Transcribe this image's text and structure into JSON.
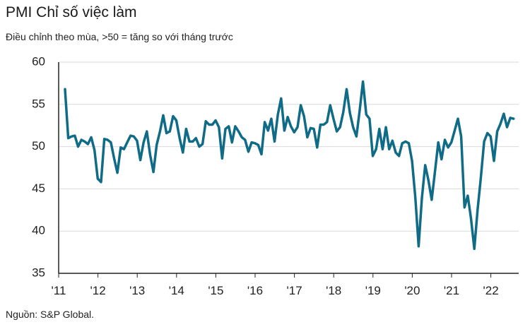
{
  "title": "PMI Chỉ số việc làm",
  "subtitle": "Điều chỉnh theo mùa, >50 = tăng so với tháng trước",
  "source": "Nguồn: S&P Global.",
  "chart_data": {
    "type": "line",
    "ylim": [
      35,
      60
    ],
    "y_ticks": [
      60,
      55,
      50,
      45,
      40,
      35
    ],
    "x_ticks": [
      "'11",
      "'12",
      "'13",
      "'14",
      "'15",
      "'16",
      "'17",
      "'18",
      "'19",
      "'20",
      "'21",
      "'22"
    ],
    "start": "2011-01",
    "line_color": "#0f6b86",
    "grid": "horizontal",
    "series": [
      {
        "values": [
          56.8,
          51.0,
          51.2,
          51.3,
          50.0,
          50.8,
          50.6,
          50.3,
          51.1,
          49.6,
          46.2,
          45.8,
          50.9,
          50.8,
          50.5,
          48.6,
          46.9,
          49.9,
          49.7,
          50.5,
          51.3,
          51.2,
          50.7,
          48.4,
          50.5,
          51.8,
          49.0,
          47.0,
          50.2,
          51.8,
          53.7,
          51.6,
          51.8,
          53.6,
          53.1,
          51.0,
          49.3,
          52.1,
          50.6,
          50.6,
          51.0,
          50.0,
          50.3,
          53.0,
          52.6,
          52.6,
          53.1,
          52.3,
          48.6,
          52.1,
          52.4,
          50.5,
          52.4,
          51.8,
          51.1,
          50.8,
          49.4,
          50.5,
          50.4,
          50.2,
          49.1,
          52.9,
          51.9,
          53.3,
          50.6,
          53.8,
          55.7,
          51.9,
          53.5,
          52.4,
          51.7,
          52.3,
          54.9,
          53.6,
          51.1,
          52.2,
          52.1,
          49.9,
          52.6,
          52.6,
          52.9,
          54.9,
          53.3,
          51.8,
          52.3,
          54.1,
          56.8,
          54.0,
          52.3,
          51.2,
          54.3,
          57.7,
          53.8,
          53.3,
          48.9,
          49.7,
          52.1,
          49.7,
          52.3,
          49.7,
          50.7,
          49.3,
          48.9,
          50.4,
          50.6,
          50.4,
          48.3,
          43.9,
          38.2,
          43.9,
          47.8,
          46.0,
          43.7,
          47.1,
          50.5,
          48.5,
          50.8,
          49.9,
          50.5,
          51.9,
          53.3,
          51.2,
          42.8,
          44.2,
          41.5,
          37.9,
          42.5,
          46.3,
          50.6,
          51.6,
          51.2,
          48.3,
          51.8,
          52.7,
          53.9,
          52.3,
          53.4,
          53.3
        ]
      }
    ]
  }
}
